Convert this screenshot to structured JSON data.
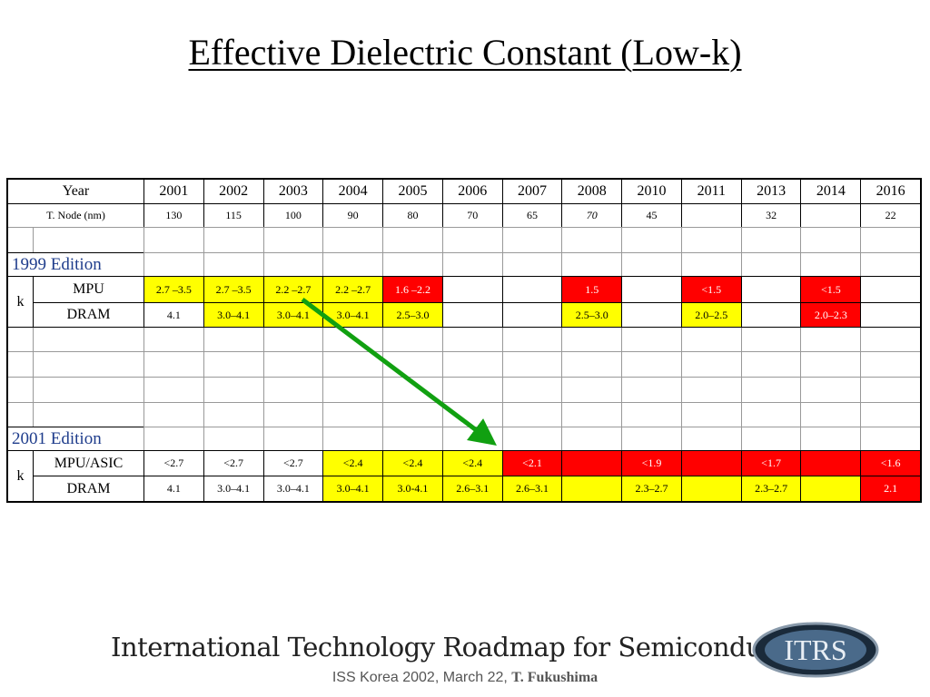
{
  "title": "Effective Dielectric Constant (Low-k)",
  "table": {
    "year_label": "Year",
    "years": [
      2001,
      2002,
      2003,
      2004,
      2005,
      2006,
      2007,
      2008,
      2010,
      2011,
      2013,
      2014,
      2016
    ],
    "node_label": "T. Node  (nm)",
    "nodes": [
      130,
      115,
      100,
      90,
      80,
      70,
      65,
      70,
      45,
      null,
      32,
      null,
      22
    ],
    "editions": [
      {
        "name": "1999 Edition",
        "group": "k",
        "rows": [
          {
            "label": "MPU",
            "cells": [
              "2.7 –3.5",
              "2.7 –3.5",
              "2.2 –2.7",
              "2.2 –2.7",
              "1.6 –2.2",
              null,
              null,
              "1.5",
              null,
              "<1.5",
              null,
              "<1.5",
              null
            ],
            "fills": [
              "#ffff00",
              "#ffff00",
              "#ffff00",
              "#ffff00",
              "#ff0000",
              null,
              null,
              "#ff0000",
              null,
              "#ff0000",
              null,
              "#ff0000",
              null
            ]
          },
          {
            "label": "DRAM",
            "cells": [
              "4.1",
              "3.0–4.1",
              "3.0–4.1",
              "3.0–4.1",
              "2.5–3.0",
              null,
              null,
              "2.5–3.0",
              null,
              "2.0–2.5",
              null,
              "2.0–2.3",
              null
            ],
            "fills": [
              null,
              "#ffff00",
              "#ffff00",
              "#ffff00",
              "#ffff00",
              null,
              null,
              "#ffff00",
              null,
              "#ffff00",
              null,
              "#ff0000",
              null
            ]
          }
        ]
      },
      {
        "name": "2001 Edition",
        "group": "k",
        "rows": [
          {
            "label": "MPU/ASIC",
            "cells": [
              "<2.7",
              "<2.7",
              "<2.7",
              "<2.4",
              "<2.4",
              "<2.4",
              "<2.1",
              null,
              "<1.9",
              null,
              "<1.7",
              null,
              "<1.6"
            ],
            "fills": [
              null,
              null,
              null,
              "#ffff00",
              "#ffff00",
              "#ffff00",
              "#ff0000",
              "#ff0000",
              "#ff0000",
              "#ff0000",
              "#ff0000",
              "#ff0000",
              "#ff0000"
            ]
          },
          {
            "label": "DRAM",
            "cells": [
              "4.1",
              "3.0–4.1",
              "3.0–4.1",
              "3.0–4.1",
              "3.0-4.1",
              "2.6–3.1",
              "2.6–3.1",
              null,
              "2.3–2.7",
              null,
              "2.3–2.7",
              null,
              "2.1"
            ],
            "fills": [
              null,
              null,
              null,
              "#ffff00",
              "#ffff00",
              "#ffff00",
              "#ffff00",
              "#ffff00",
              "#ffff00",
              "#ffff00",
              "#ffff00",
              "#ffff00",
              "#ff0000"
            ]
          }
        ]
      }
    ]
  },
  "footer": {
    "organization": "International Technology Roadmap for Semiconductors",
    "logo": "ITRS",
    "event": "ISS Korea 2002, March 22,",
    "author": "T. Fukushima"
  }
}
